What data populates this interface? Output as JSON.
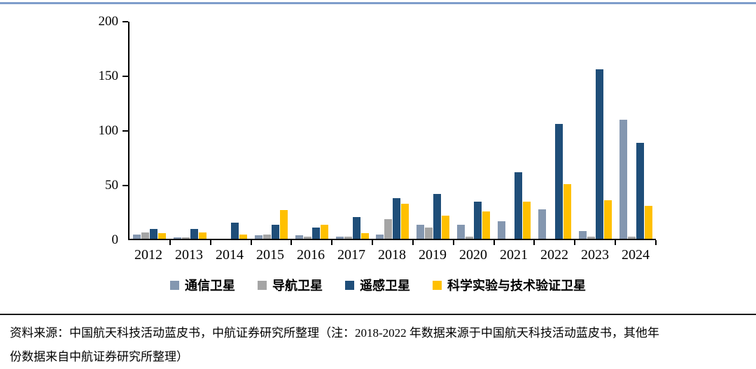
{
  "chart_data": {
    "type": "bar",
    "title": "",
    "xlabel": "",
    "ylabel": "",
    "ylim": [
      0,
      200
    ],
    "yticks": [
      0,
      50,
      100,
      150,
      200
    ],
    "grid": false,
    "legend_position": "bottom",
    "categories": [
      "2012",
      "2013",
      "2014",
      "2015",
      "2016",
      "2017",
      "2018",
      "2019",
      "2020",
      "2021",
      "2022",
      "2023",
      "2024"
    ],
    "series": [
      {
        "name": "通信卫星",
        "color": "#8497B0",
        "values": [
          4,
          1,
          0,
          3,
          3,
          2,
          4,
          13,
          13,
          16,
          27,
          7,
          109
        ]
      },
      {
        "name": "导航卫星",
        "color": "#A5A5A5",
        "values": [
          6,
          1,
          0,
          4,
          2,
          2,
          18,
          10,
          2,
          0,
          0,
          2,
          2
        ]
      },
      {
        "name": "遥感卫星",
        "color": "#1F4E79",
        "values": [
          9,
          9,
          15,
          13,
          10,
          20,
          37,
          41,
          34,
          61,
          105,
          155,
          88
        ]
      },
      {
        "name": "科学实验与技术验证卫星",
        "color": "#FFC000",
        "values": [
          5,
          6,
          4,
          26,
          13,
          5,
          32,
          21,
          25,
          34,
          50,
          35,
          30
        ]
      }
    ]
  },
  "footer": {
    "line1": "资料来源：中国航天科技活动蓝皮书，中航证券研究所整理（注：2018-2022 年数据来源于中国航天科技活动蓝皮书，其他年",
    "line2": "份数据来自中航证券研究所整理）"
  },
  "style": {
    "top_border_color": "#7F9DCB",
    "axis_color": "#000000",
    "divider_color": "#1A1A1A"
  }
}
